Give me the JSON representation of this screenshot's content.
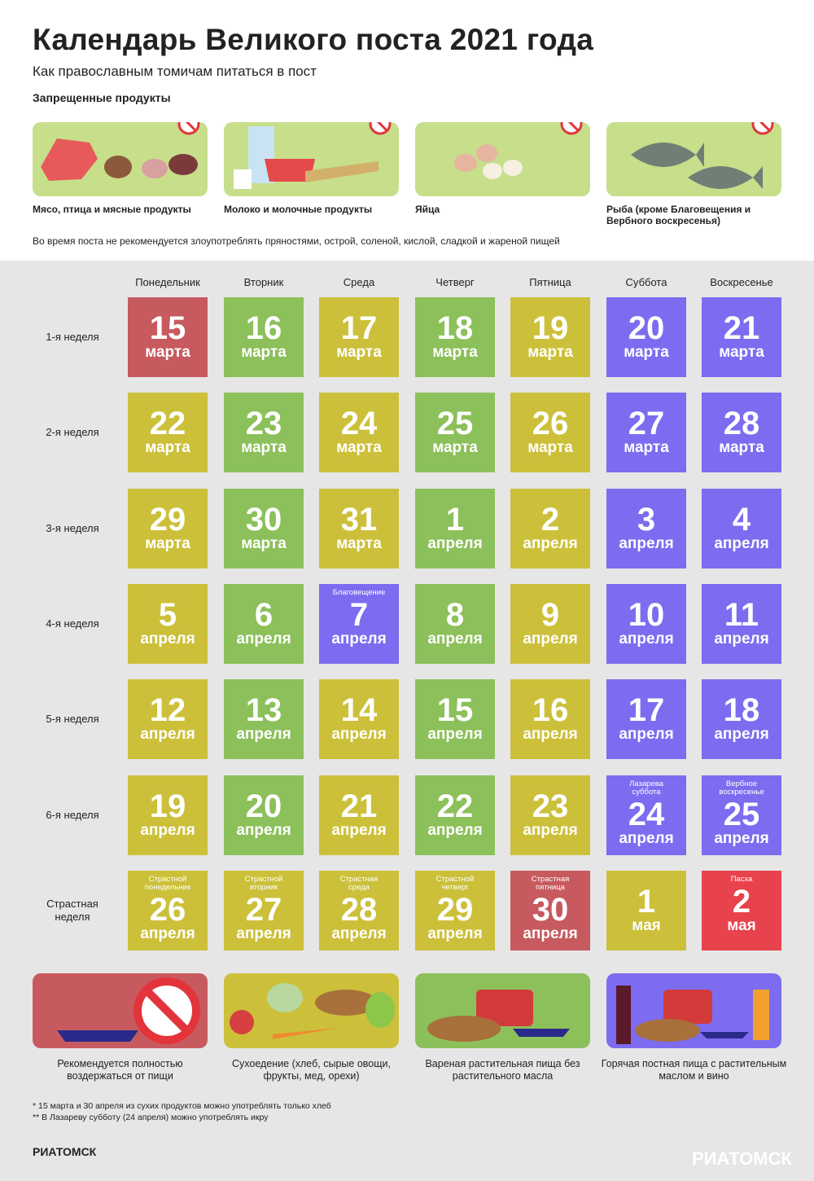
{
  "header": {
    "title": "Календарь Великого поста 2021 года",
    "subtitle": "Как православным томичам питаться в пост"
  },
  "forbidden": {
    "title": "Запрещенные продукты",
    "items": [
      {
        "label": "Мясо, птица и мясные продукты"
      },
      {
        "label": "Молоко и молочные продукты"
      },
      {
        "label": "Яйца"
      },
      {
        "label": "Рыба (кроме Благовещения и Вербного воскресенья)"
      }
    ],
    "note": "Во время поста не рекомендуется злоупотреблять пряностями, острой, соленой, кислой, сладкой и жареной пищей"
  },
  "calendar": {
    "days": [
      "Понедельник",
      "Вторник",
      "Среда",
      "Четверг",
      "Пятница",
      "Суббота",
      "Воскресенье"
    ],
    "weeks": [
      {
        "label": "1-я неделя",
        "cells": [
          {
            "day": "15",
            "month": "марта",
            "color": "#c75a5e"
          },
          {
            "day": "16",
            "month": "марта",
            "color": "#8cc05a"
          },
          {
            "day": "17",
            "month": "марта",
            "color": "#ccc03a"
          },
          {
            "day": "18",
            "month": "марта",
            "color": "#8cc05a"
          },
          {
            "day": "19",
            "month": "марта",
            "color": "#ccc03a"
          },
          {
            "day": "20",
            "month": "марта",
            "color": "#7d6cf0"
          },
          {
            "day": "21",
            "month": "марта",
            "color": "#7d6cf0"
          }
        ]
      },
      {
        "label": "2-я неделя",
        "cells": [
          {
            "day": "22",
            "month": "марта",
            "color": "#ccc03a"
          },
          {
            "day": "23",
            "month": "марта",
            "color": "#8cc05a"
          },
          {
            "day": "24",
            "month": "марта",
            "color": "#ccc03a"
          },
          {
            "day": "25",
            "month": "марта",
            "color": "#8cc05a"
          },
          {
            "day": "26",
            "month": "марта",
            "color": "#ccc03a"
          },
          {
            "day": "27",
            "month": "марта",
            "color": "#7d6cf0"
          },
          {
            "day": "28",
            "month": "марта",
            "color": "#7d6cf0"
          }
        ]
      },
      {
        "label": "3-я неделя",
        "cells": [
          {
            "day": "29",
            "month": "марта",
            "color": "#ccc03a"
          },
          {
            "day": "30",
            "month": "марта",
            "color": "#8cc05a"
          },
          {
            "day": "31",
            "month": "марта",
            "color": "#ccc03a"
          },
          {
            "day": "1",
            "month": "апреля",
            "color": "#8cc05a"
          },
          {
            "day": "2",
            "month": "апреля",
            "color": "#ccc03a"
          },
          {
            "day": "3",
            "month": "апреля",
            "color": "#7d6cf0"
          },
          {
            "day": "4",
            "month": "апреля",
            "color": "#7d6cf0"
          }
        ]
      },
      {
        "label": "4-я неделя",
        "cells": [
          {
            "day": "5",
            "month": "апреля",
            "color": "#ccc03a"
          },
          {
            "day": "6",
            "month": "апреля",
            "color": "#8cc05a"
          },
          {
            "day": "7",
            "month": "апреля",
            "color": "#7d6cf0",
            "note": "Благовещение"
          },
          {
            "day": "8",
            "month": "апреля",
            "color": "#8cc05a"
          },
          {
            "day": "9",
            "month": "апреля",
            "color": "#ccc03a"
          },
          {
            "day": "10",
            "month": "апреля",
            "color": "#7d6cf0"
          },
          {
            "day": "11",
            "month": "апреля",
            "color": "#7d6cf0"
          }
        ]
      },
      {
        "label": "5-я неделя",
        "cells": [
          {
            "day": "12",
            "month": "апреля",
            "color": "#ccc03a"
          },
          {
            "day": "13",
            "month": "апреля",
            "color": "#8cc05a"
          },
          {
            "day": "14",
            "month": "апреля",
            "color": "#ccc03a"
          },
          {
            "day": "15",
            "month": "апреля",
            "color": "#8cc05a"
          },
          {
            "day": "16",
            "month": "апреля",
            "color": "#ccc03a"
          },
          {
            "day": "17",
            "month": "апреля",
            "color": "#7d6cf0"
          },
          {
            "day": "18",
            "month": "апреля",
            "color": "#7d6cf0"
          }
        ]
      },
      {
        "label": "6-я неделя",
        "cells": [
          {
            "day": "19",
            "month": "апреля",
            "color": "#ccc03a"
          },
          {
            "day": "20",
            "month": "апреля",
            "color": "#8cc05a"
          },
          {
            "day": "21",
            "month": "апреля",
            "color": "#ccc03a"
          },
          {
            "day": "22",
            "month": "апреля",
            "color": "#8cc05a"
          },
          {
            "day": "23",
            "month": "апреля",
            "color": "#ccc03a"
          },
          {
            "day": "24",
            "month": "апреля",
            "color": "#7d6cf0",
            "note": "Лазарева суббота"
          },
          {
            "day": "25",
            "month": "апреля",
            "color": "#7d6cf0",
            "note": "Вербное воскресенье"
          }
        ]
      },
      {
        "label": "Страстная неделя",
        "cells": [
          {
            "day": "26",
            "month": "апреля",
            "color": "#ccc03a",
            "note": "Страстной понедельник"
          },
          {
            "day": "27",
            "month": "апреля",
            "color": "#ccc03a",
            "note": "Страстной вторник"
          },
          {
            "day": "28",
            "month": "апреля",
            "color": "#ccc03a",
            "note": "Страстная среда"
          },
          {
            "day": "29",
            "month": "апреля",
            "color": "#ccc03a",
            "note": "Страстной четверг"
          },
          {
            "day": "30",
            "month": "апреля",
            "color": "#c75a5e",
            "note": "Страстная пятница"
          },
          {
            "day": "1",
            "month": "мая",
            "color": "#ccc03a"
          },
          {
            "day": "2",
            "month": "мая",
            "color": "#e8424c",
            "note": "Пасха"
          }
        ]
      }
    ]
  },
  "legend": [
    {
      "label": "Рекомендуется полностью воздержаться от пищи",
      "color": "#c75a5e"
    },
    {
      "label": "Сухоедение (хлеб, сырые овощи, фрукты, мед, орехи)",
      "color": "#ccc03a"
    },
    {
      "label": "Вареная растительная пища без растительного масла",
      "color": "#8cc05a"
    },
    {
      "label": "Горячая постная пища с растительным маслом и вино",
      "color": "#7d6cf0"
    }
  ],
  "footnotes": [
    "* 15 марта и 30 апреля из сухих продуктов можно употреблять только хлеб",
    "** В Лазареву субботу (24 апреля) можно употреблять икру"
  ],
  "brand": "РИАТОМСК"
}
